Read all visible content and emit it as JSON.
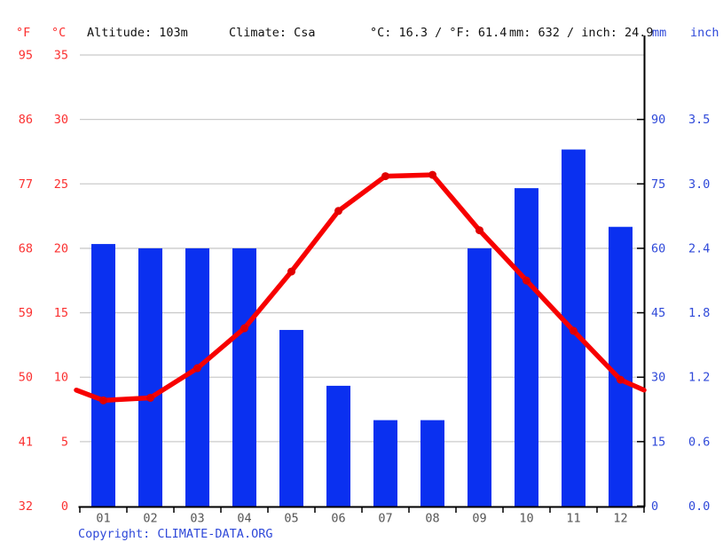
{
  "header": {
    "f_label": "°F",
    "c_label": "°C",
    "altitude": "Altitude: 103m",
    "climate": "Climate: Csa",
    "temp_summary": "°C: 16.3 / °F: 61.4",
    "precip_summary": "mm: 632 / inch: 24.9",
    "mm_label": "mm",
    "inch_label": "inch"
  },
  "chart_data": {
    "type": "bar",
    "categories": [
      "01",
      "02",
      "03",
      "04",
      "05",
      "06",
      "07",
      "08",
      "09",
      "10",
      "11",
      "12"
    ],
    "series": [
      {
        "name": "precipitation",
        "type": "bar",
        "unit": "mm",
        "values": [
          61,
          60,
          60,
          60,
          41,
          28,
          20,
          20,
          60,
          74,
          83,
          65
        ]
      },
      {
        "name": "temperature",
        "type": "line",
        "unit": "°C",
        "values": [
          8.2,
          8.4,
          10.7,
          13.8,
          18.2,
          22.9,
          25.6,
          25.7,
          21.4,
          17.5,
          13.6,
          9.8
        ]
      }
    ],
    "axes": {
      "left_f_ticks": [
        "95",
        "86",
        "77",
        "68",
        "59",
        "50",
        "41",
        "32"
      ],
      "left_c_ticks": [
        "35",
        "30",
        "25",
        "20",
        "15",
        "10",
        "5",
        "0"
      ],
      "right_mm_ticks": [
        "90",
        "75",
        "60",
        "45",
        "30",
        "15",
        "0"
      ],
      "right_inch_ticks": [
        "3.5",
        "3.0",
        "2.4",
        "1.8",
        "1.2",
        "0.6",
        "0.0"
      ],
      "c_range": [
        0,
        35
      ],
      "mm_range": [
        0,
        105
      ],
      "grid": true,
      "edge_line_value_c": 9.0
    }
  },
  "footer": {
    "copyright_prefix": "Copyright: ",
    "copyright_link": "CLIMATE-DATA.ORG"
  },
  "colors": {
    "bar_blue": "#0a30f0",
    "line_red": "#f70000",
    "dot_red": "#e10000",
    "red_text": "#fb3030",
    "blue_text": "#2f49d9",
    "grid_gray": "#cbcbcb",
    "month_text": "#555555",
    "axis_black": "#000000"
  }
}
